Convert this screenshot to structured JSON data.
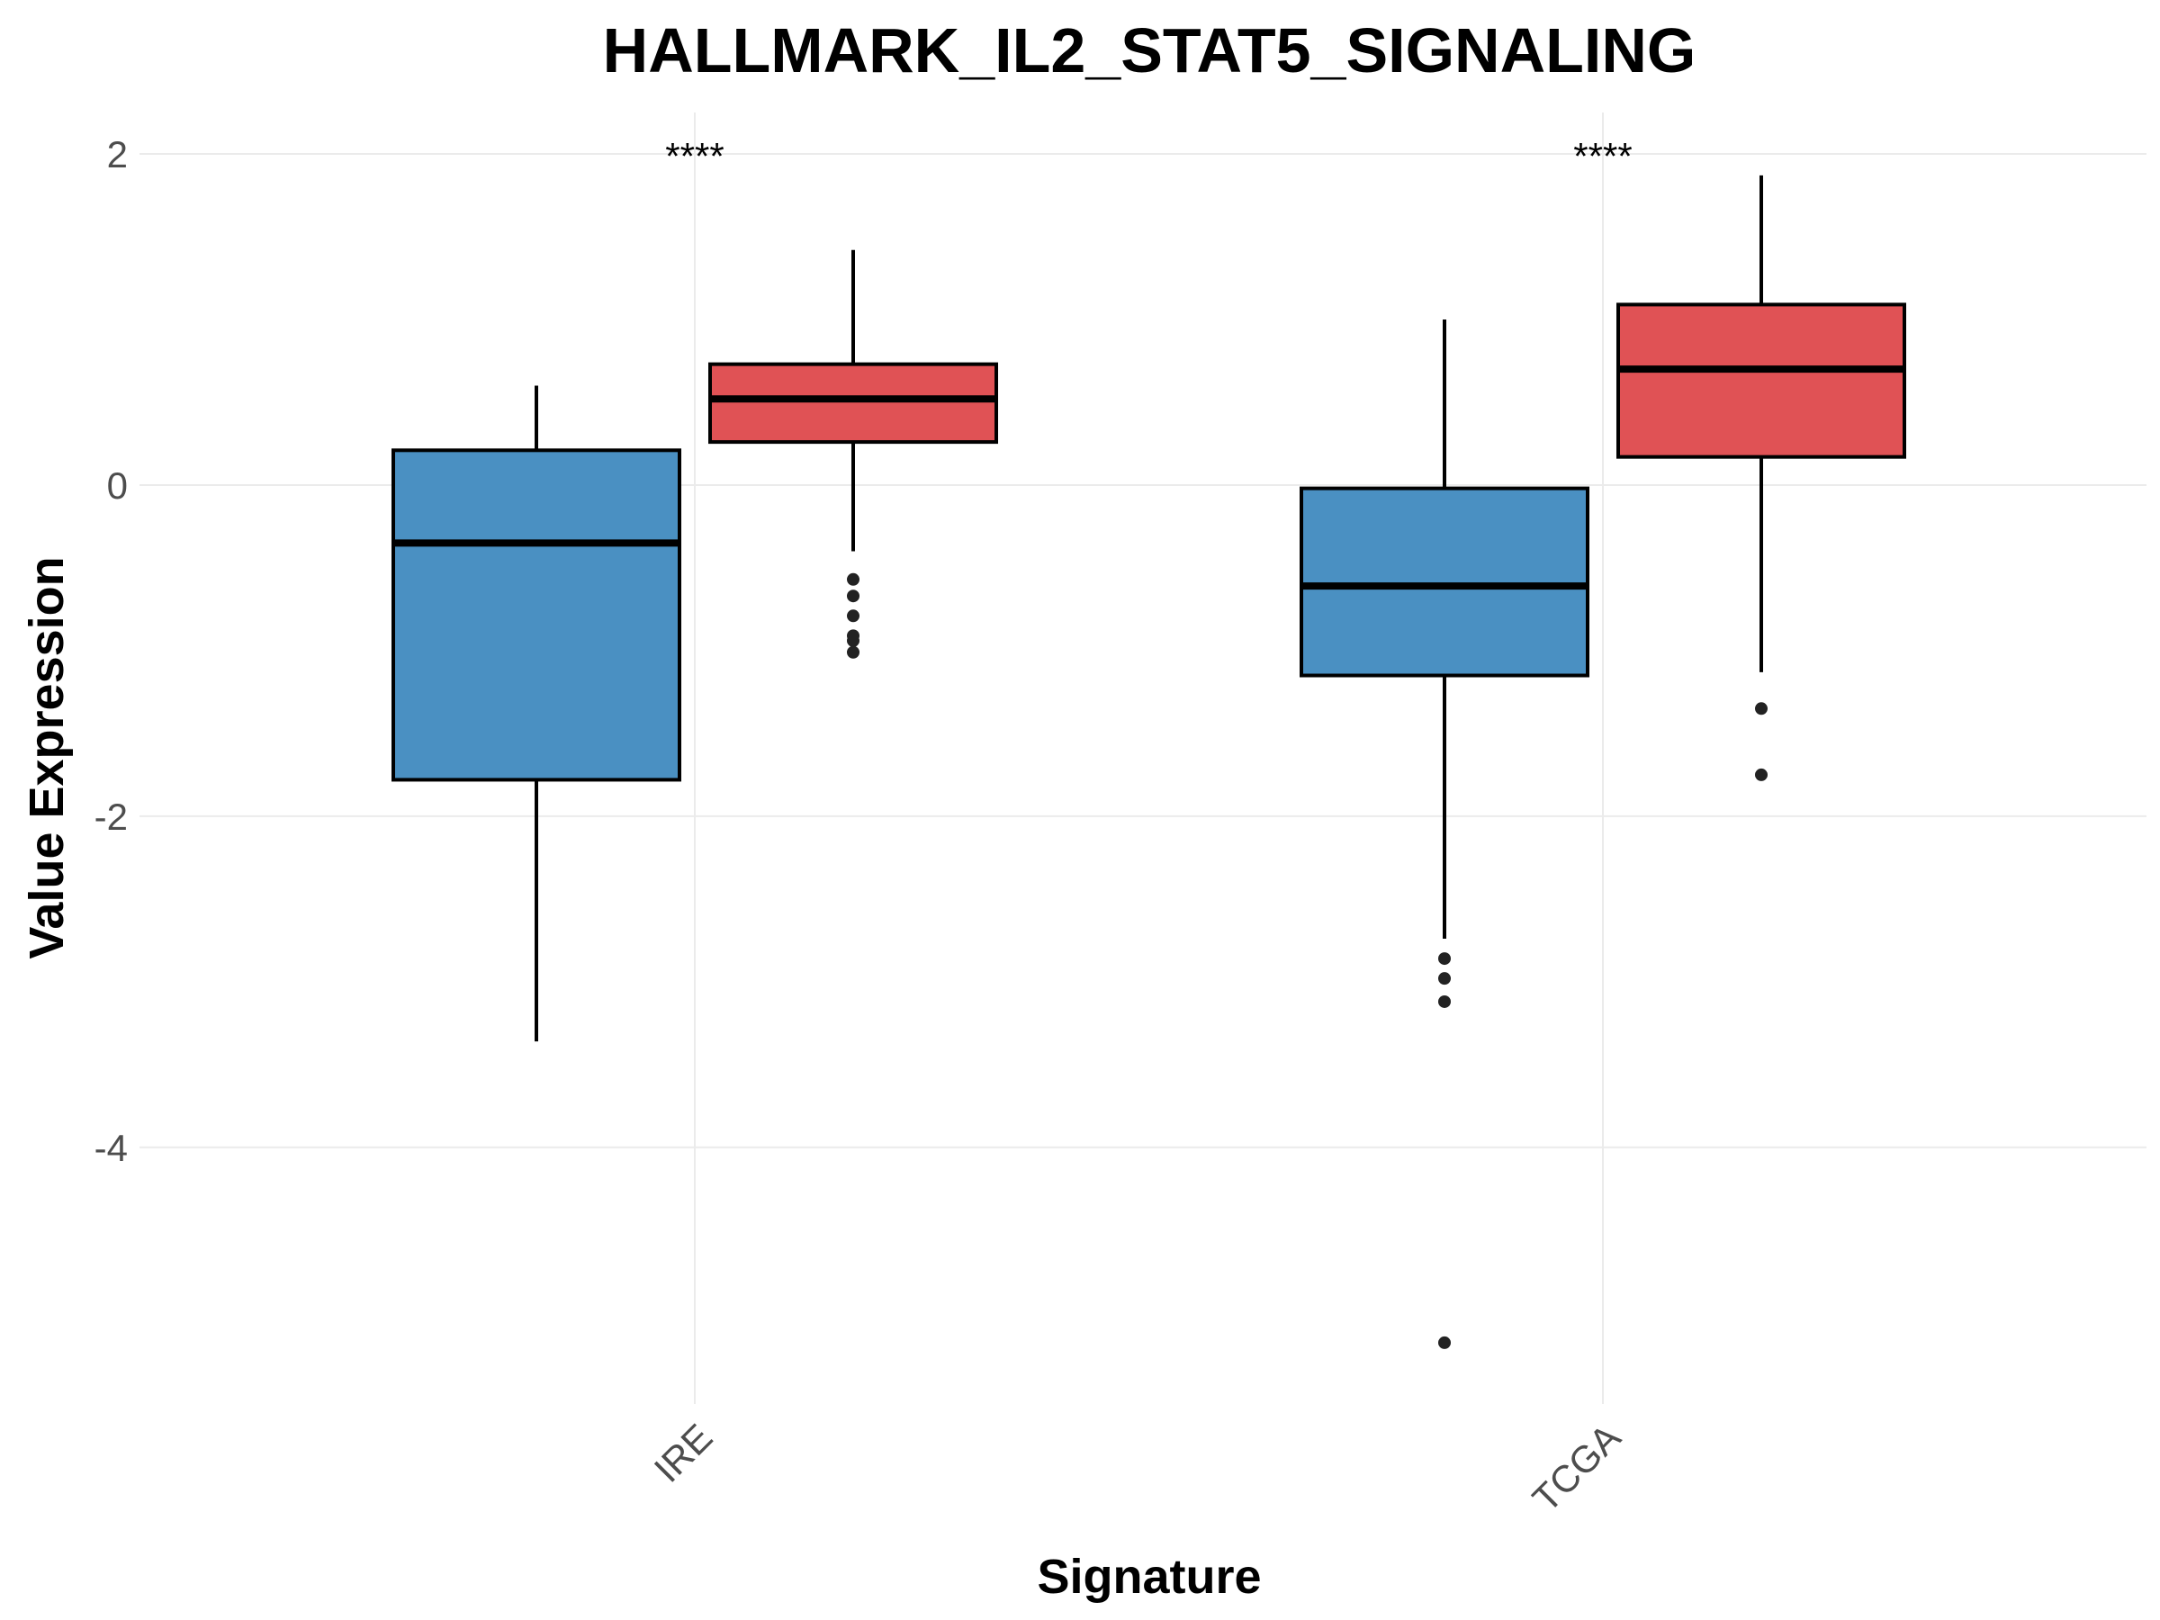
{
  "chart_data": {
    "type": "boxplot",
    "title": "HALLMARK_IL2_STAT5_SIGNALING",
    "xlabel": "Signature",
    "ylabel": "Value Expression",
    "categories": [
      "IRE",
      "TCGA"
    ],
    "y_ticks": [
      2,
      0,
      -2,
      -4
    ],
    "y_tick_labels": [
      "2",
      "0",
      "-2",
      "-4"
    ],
    "ylim": [
      -5.55,
      2.25
    ],
    "grid": true,
    "significance": [
      "****",
      "****"
    ],
    "colors": {
      "blue": "#4a90c2",
      "red": "#e05255",
      "outline": "#000000"
    },
    "series": [
      {
        "color": "#4a90c2",
        "boxes": [
          {
            "category": "IRE",
            "q1": -1.78,
            "median": -0.35,
            "q3": 0.21,
            "whisker_low": -3.36,
            "whisker_high": 0.6,
            "outliers": []
          },
          {
            "category": "TCGA",
            "q1": -1.15,
            "median": -0.61,
            "q3": -0.02,
            "whisker_low": -2.74,
            "whisker_high": 1.0,
            "outliers": [
              -2.86,
              -2.98,
              -3.12,
              -5.18
            ]
          }
        ]
      },
      {
        "color": "#e05255",
        "boxes": [
          {
            "category": "IRE",
            "q1": 0.26,
            "median": 0.52,
            "q3": 0.73,
            "whisker_low": -0.4,
            "whisker_high": 1.42,
            "outliers": [
              -0.57,
              -0.67,
              -0.79,
              -0.91,
              -0.94,
              -1.01
            ]
          },
          {
            "category": "TCGA",
            "q1": 0.17,
            "median": 0.7,
            "q3": 1.09,
            "whisker_low": -1.13,
            "whisker_high": 1.87,
            "outliers": [
              -1.35,
              -1.75
            ]
          }
        ]
      }
    ]
  }
}
